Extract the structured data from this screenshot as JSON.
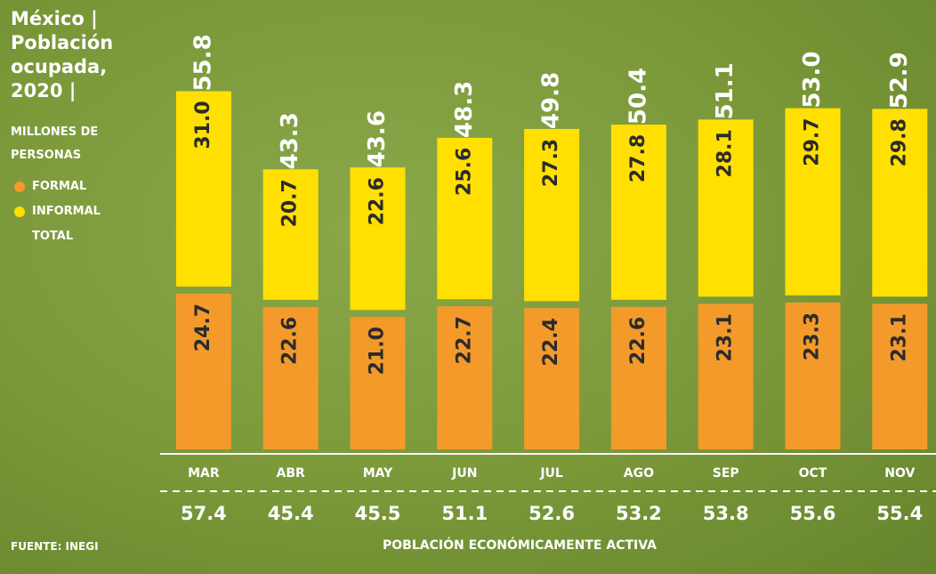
{
  "chart_data": {
    "type": "stacked-bar",
    "title": "México | Población ocupada, 2020 |",
    "subtitle": "MILLONES DE PERSONAS",
    "categories": [
      "MAR",
      "ABR",
      "MAY",
      "JUN",
      "JUL",
      "AGO",
      "SEP",
      "OCT",
      "NOV"
    ],
    "series": [
      {
        "name": "FORMAL",
        "color": "#f39a2b",
        "values": [
          24.7,
          22.6,
          21.0,
          22.7,
          22.4,
          22.6,
          23.1,
          23.3,
          23.1
        ],
        "value_labels": [
          "24.7",
          "22.6",
          "21.0",
          "22.7",
          "22.4",
          "22.6",
          "23.1",
          "23.3",
          "23.1"
        ]
      },
      {
        "name": "INFORMAL",
        "color": "#ffe000",
        "values": [
          31.0,
          20.7,
          22.6,
          25.6,
          27.3,
          27.8,
          28.1,
          29.7,
          29.8
        ],
        "value_labels": [
          "31.0",
          "20.7",
          "22.6",
          "25.6",
          "27.3",
          "27.8",
          "28.1",
          "29.7",
          "29.8"
        ]
      }
    ],
    "total": {
      "name": "TOTAL",
      "values": [
        55.8,
        43.3,
        43.6,
        48.3,
        49.8,
        50.4,
        51.1,
        53.0,
        52.9
      ],
      "value_labels": [
        "55.8",
        "43.3",
        "43.6",
        "48.3",
        "49.8",
        "50.4",
        "51.1",
        "53.0",
        "52.9"
      ]
    },
    "pea": {
      "name": "POBLACIÓN ECONÓMICAMENTE ACTIVA",
      "values": [
        57.4,
        45.4,
        45.5,
        51.1,
        52.6,
        53.2,
        53.8,
        55.6,
        55.4
      ],
      "value_labels": [
        "57.4",
        "45.4",
        "45.5",
        "51.1",
        "52.6",
        "53.2",
        "53.8",
        "55.6",
        "55.4"
      ]
    },
    "source": "FUENTE: INEGI",
    "ylim": [
      0,
      60
    ]
  }
}
